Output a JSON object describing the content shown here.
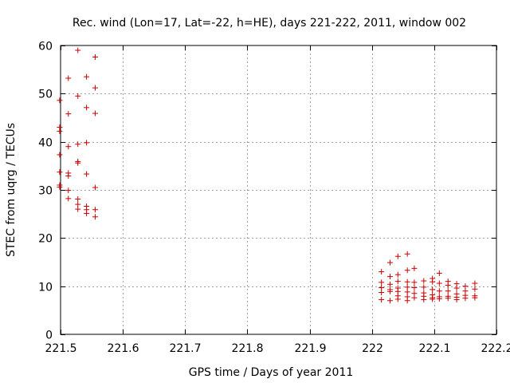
{
  "chart_data": {
    "type": "scatter",
    "title": "Rec. wind (Lon=17, Lat=-22, h=HE), days 221-222, 2011, window 002",
    "xlabel": "GPS time / Days of year 2011",
    "ylabel": "STEC from uqrg / TECUs",
    "xlim": [
      221.5,
      222.2
    ],
    "ylim": [
      0,
      60
    ],
    "xticks": [
      221.5,
      221.6,
      221.7,
      221.8,
      221.9,
      222.0,
      222.1,
      222.2
    ],
    "xtick_labels": [
      "221.5",
      "221.6",
      "221.7",
      "221.8",
      "221.9",
      "222",
      "222.1",
      "222.2"
    ],
    "yticks": [
      0,
      10,
      20,
      30,
      40,
      50,
      60
    ],
    "ytick_labels": [
      "0",
      "10",
      "20",
      "30",
      "40",
      "50",
      "60"
    ],
    "grid": true,
    "marker": "plus",
    "color": "#cc0000",
    "series": [
      {
        "points": [
          [
            221.4986,
            48.6
          ],
          [
            221.4986,
            43.0
          ],
          [
            221.4986,
            42.2
          ],
          [
            221.4986,
            37.3
          ],
          [
            221.4986,
            33.7
          ],
          [
            221.4986,
            31.0
          ],
          [
            221.4986,
            30.6
          ],
          [
            221.5125,
            53.2
          ],
          [
            221.5125,
            45.8
          ],
          [
            221.5125,
            39.0
          ],
          [
            221.5125,
            33.5
          ],
          [
            221.5125,
            32.9
          ],
          [
            221.5125,
            29.9
          ],
          [
            221.5125,
            28.2
          ],
          [
            221.5278,
            59.0
          ],
          [
            221.5278,
            49.5
          ],
          [
            221.5278,
            39.5
          ],
          [
            221.5278,
            35.9
          ],
          [
            221.5278,
            35.6
          ],
          [
            221.5278,
            28.1
          ],
          [
            221.5278,
            27.0
          ],
          [
            221.5278,
            26.0
          ],
          [
            221.5417,
            53.5
          ],
          [
            221.5417,
            47.1
          ],
          [
            221.5417,
            39.8
          ],
          [
            221.5417,
            33.3
          ],
          [
            221.5417,
            26.6
          ],
          [
            221.5417,
            25.9
          ],
          [
            221.5417,
            25.1
          ],
          [
            221.5556,
            57.6
          ],
          [
            221.5556,
            51.2
          ],
          [
            221.5556,
            45.9
          ],
          [
            221.5556,
            30.5
          ],
          [
            221.5556,
            25.9
          ],
          [
            221.5556,
            24.4
          ],
          [
            222.0153,
            13.0
          ],
          [
            222.0153,
            10.8
          ],
          [
            222.0153,
            9.7
          ],
          [
            222.0153,
            8.7
          ],
          [
            222.0153,
            7.2
          ],
          [
            222.0292,
            14.9
          ],
          [
            222.0292,
            12.0
          ],
          [
            222.0292,
            10.4
          ],
          [
            222.0292,
            9.3
          ],
          [
            222.0292,
            8.9
          ],
          [
            222.0292,
            7.0
          ],
          [
            222.0417,
            16.2
          ],
          [
            222.0417,
            12.4
          ],
          [
            222.0417,
            11.0
          ],
          [
            222.0417,
            9.6
          ],
          [
            222.0417,
            8.9
          ],
          [
            222.0417,
            8.0
          ],
          [
            222.0417,
            7.3
          ],
          [
            222.0569,
            16.7
          ],
          [
            222.0569,
            13.3
          ],
          [
            222.0569,
            10.9
          ],
          [
            222.0569,
            9.8
          ],
          [
            222.0569,
            8.8
          ],
          [
            222.0569,
            7.8
          ],
          [
            222.0569,
            7.0
          ],
          [
            222.0681,
            13.7
          ],
          [
            222.0681,
            10.8
          ],
          [
            222.0681,
            9.7
          ],
          [
            222.0681,
            8.5
          ],
          [
            222.0681,
            7.6
          ],
          [
            222.0833,
            11.1
          ],
          [
            222.0833,
            9.8
          ],
          [
            222.0833,
            8.6
          ],
          [
            222.0833,
            7.9
          ],
          [
            222.0833,
            7.2
          ],
          [
            222.0972,
            11.6
          ],
          [
            222.0972,
            10.9
          ],
          [
            222.0972,
            9.3
          ],
          [
            222.0972,
            8.2
          ],
          [
            222.0972,
            7.6
          ],
          [
            222.0972,
            7.3
          ],
          [
            222.1083,
            12.7
          ],
          [
            222.1083,
            10.6
          ],
          [
            222.1083,
            9.0
          ],
          [
            222.1083,
            7.8
          ],
          [
            222.1083,
            7.4
          ],
          [
            222.1222,
            11.0
          ],
          [
            222.1222,
            10.2
          ],
          [
            222.1222,
            9.0
          ],
          [
            222.1222,
            7.9
          ],
          [
            222.1222,
            7.5
          ],
          [
            222.1361,
            10.5
          ],
          [
            222.1361,
            9.6
          ],
          [
            222.1361,
            8.4
          ],
          [
            222.1361,
            7.7
          ],
          [
            222.1361,
            7.2
          ],
          [
            222.15,
            10.0
          ],
          [
            222.15,
            9.0
          ],
          [
            222.15,
            8.1
          ],
          [
            222.15,
            7.5
          ],
          [
            222.1653,
            10.6
          ],
          [
            222.1653,
            9.4
          ],
          [
            222.1653,
            8.0
          ],
          [
            222.1653,
            7.6
          ]
        ]
      }
    ]
  }
}
